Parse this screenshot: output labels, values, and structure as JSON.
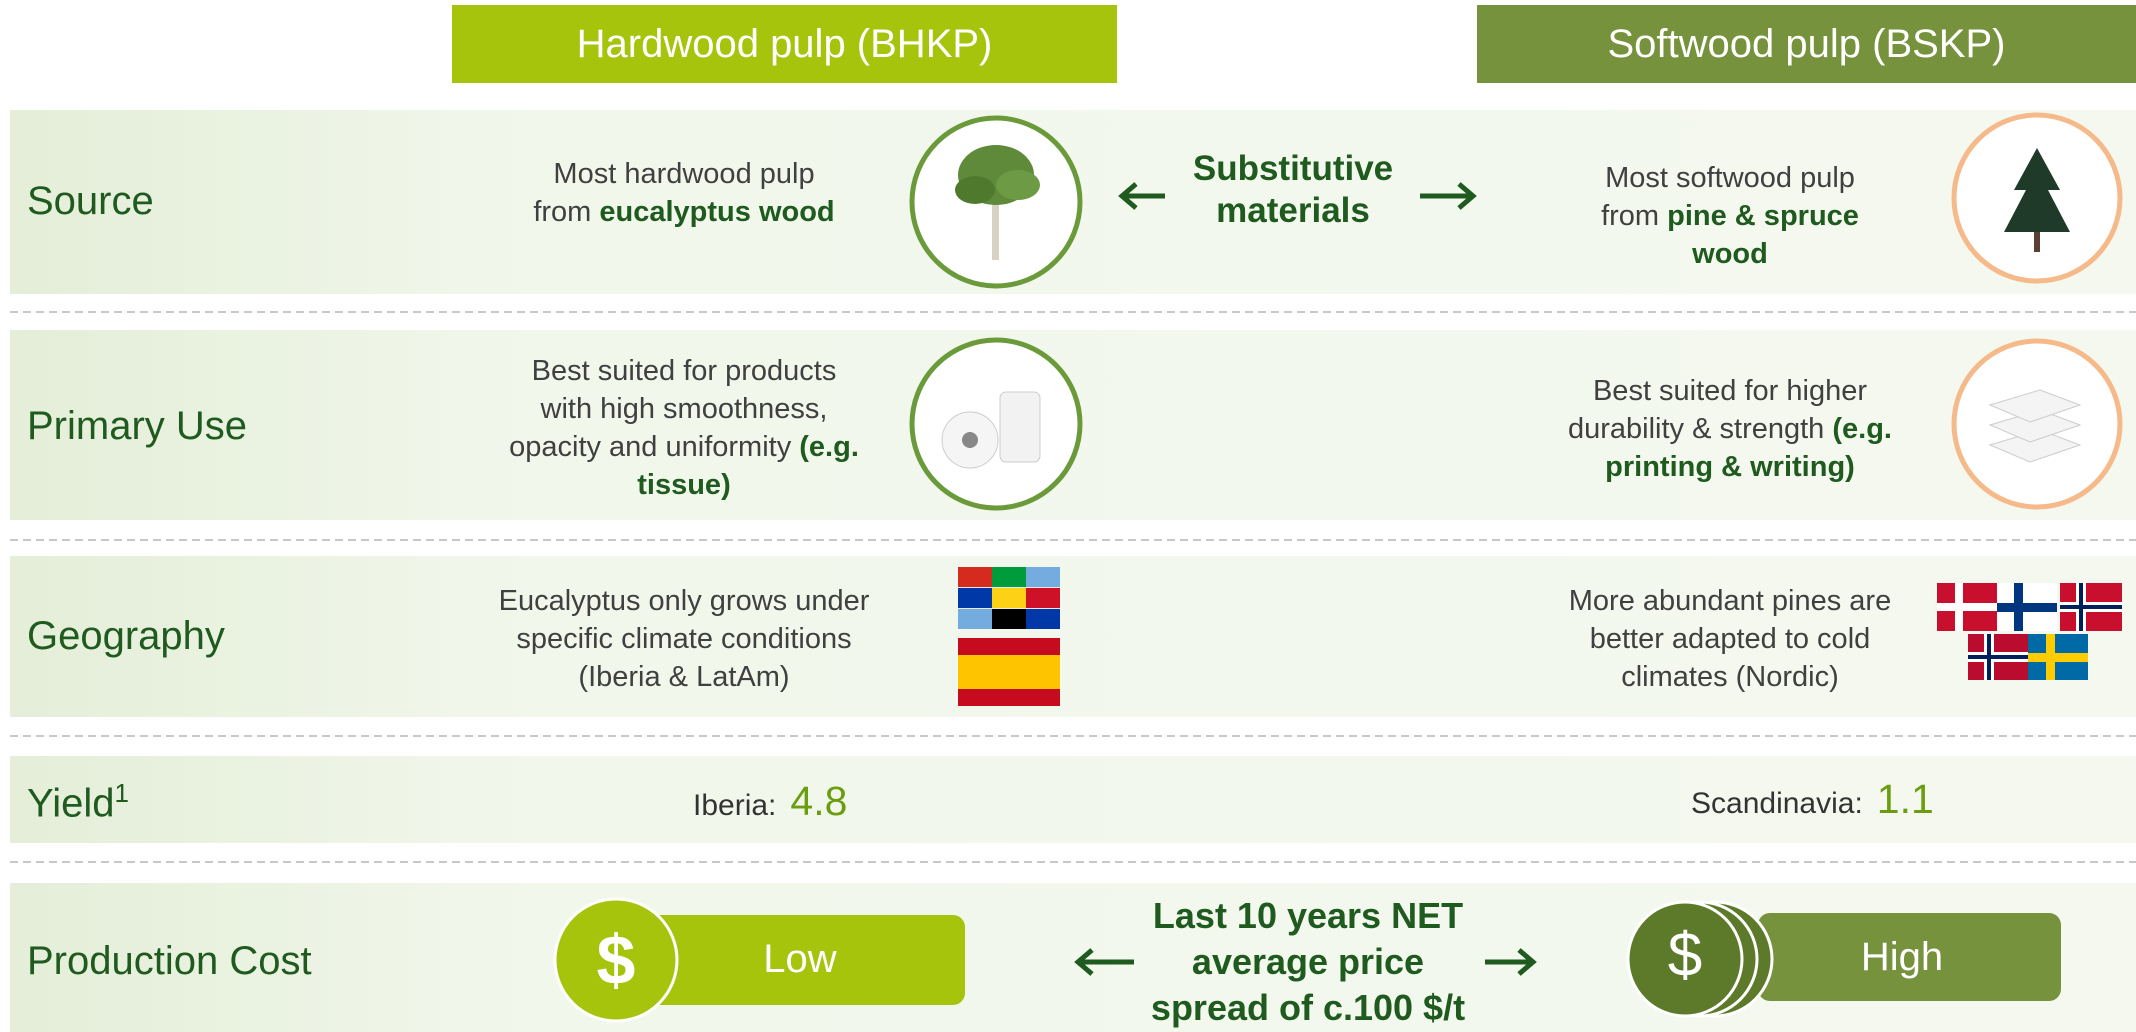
{
  "headers": {
    "hardwood": "Hardwood pulp (BHKP)",
    "softwood": "Softwood pulp (BSKP)"
  },
  "rows": [
    {
      "label": "Source",
      "hardwood": [
        [
          {
            "text": "Most hardwood pulp",
            "em": false
          }
        ],
        [
          {
            "text": "from ",
            "em": false
          },
          {
            "text": "eucalyptus wood",
            "em": true
          }
        ]
      ],
      "softwood": [
        [
          {
            "text": "Most softwood pulp",
            "em": false
          }
        ],
        [
          {
            "text": "from ",
            "em": false
          },
          {
            "text": "pine & spruce",
            "em": true
          }
        ],
        [
          {
            "text": "wood",
            "em": true
          }
        ]
      ]
    },
    {
      "label": "Primary Use",
      "hardwood": [
        [
          {
            "text": "Best suited for products",
            "em": false
          }
        ],
        [
          {
            "text": "with high smoothness,",
            "em": false
          }
        ],
        [
          {
            "text": "opacity and uniformity ",
            "em": false
          },
          {
            "text": "(e.g.",
            "em": true
          }
        ],
        [
          {
            "text": "tissue)",
            "em": true
          }
        ]
      ],
      "softwood": [
        [
          {
            "text": "Best suited for higher",
            "em": false
          }
        ],
        [
          {
            "text": "durability & strength ",
            "em": false
          },
          {
            "text": "(e.g.",
            "em": true
          }
        ],
        [
          {
            "text": "printing & writing)",
            "em": true
          }
        ]
      ]
    },
    {
      "label": "Geography",
      "hardwood": [
        [
          {
            "text": "Eucalyptus only grows under",
            "em": false
          }
        ],
        [
          {
            "text": "specific climate conditions",
            "em": false
          }
        ],
        [
          {
            "text": "(Iberia & LatAm)",
            "em": false
          }
        ]
      ],
      "softwood": [
        [
          {
            "text": "More abundant pines are",
            "em": false
          }
        ],
        [
          {
            "text": "better adapted to cold",
            "em": false
          }
        ],
        [
          {
            "text": "climates (Nordic)",
            "em": false
          }
        ]
      ]
    }
  ],
  "substitutive": [
    "Substitutive",
    "materials"
  ],
  "yield": {
    "label": "Yield",
    "footnote": "1",
    "hardwood_region": "Iberia:",
    "hardwood_value": "4.8",
    "softwood_region": "Scandinavia:",
    "softwood_value": "1.1"
  },
  "cost": {
    "label": "Production Cost",
    "symbol": "$",
    "hardwood": "Low",
    "softwood": "High",
    "spread": [
      "Last 10 years NET",
      "average price",
      "spread of c.100 $/t"
    ]
  }
}
